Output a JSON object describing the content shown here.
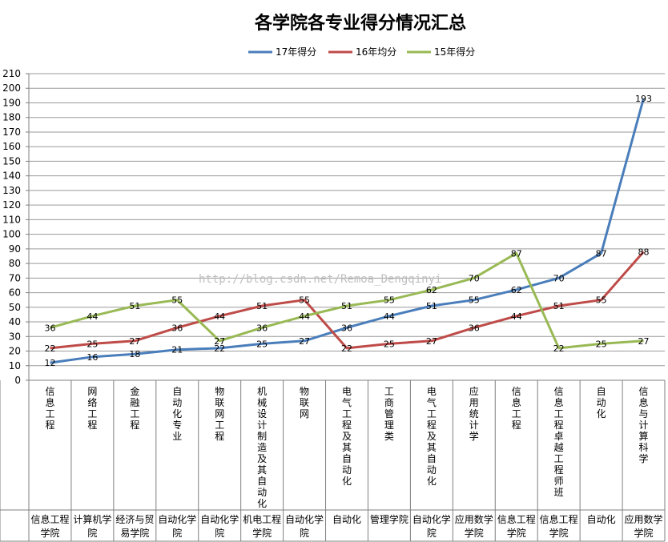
{
  "chart_data": {
    "type": "line",
    "title": "各学院各专业得分情况汇总",
    "watermark": "http://blog.csdn.net/Remoa_Dengqinyi",
    "categories": [
      {
        "major": "信息工程",
        "college": "信息工程学院"
      },
      {
        "major": "网络工程",
        "college": "计算机学院"
      },
      {
        "major": "金融工程",
        "college": "经济与贸易学院"
      },
      {
        "major": "自动化专业",
        "college": "自动化学院"
      },
      {
        "major": "物联网工程",
        "college": "自动化学院"
      },
      {
        "major": "机械设计制造及其自动化",
        "college": "机电工程学院"
      },
      {
        "major": "物联网",
        "college": "自动化学院"
      },
      {
        "major": "电气工程及其自动化",
        "college": "自动化"
      },
      {
        "major": "工商管理类",
        "college": "管理学院"
      },
      {
        "major": "电气工程及其自动化",
        "college": "自动化学院"
      },
      {
        "major": "应用统计学",
        "college": "应用数学学院"
      },
      {
        "major": "信息工程",
        "college": "信息工程学院"
      },
      {
        "major": "信息工程卓越工程师班",
        "college": "信息工程学院"
      },
      {
        "major": "自动化",
        "college": "自动化"
      },
      {
        "major": "信息与计算科学",
        "college": "应用数学学院"
      }
    ],
    "ylim": [
      0,
      210
    ],
    "yticks": [
      0,
      10,
      20,
      30,
      40,
      50,
      60,
      70,
      80,
      90,
      100,
      110,
      120,
      130,
      140,
      150,
      160,
      170,
      180,
      190,
      200,
      210
    ],
    "legend_position": "top",
    "series": [
      {
        "name": "17年得分",
        "color": "#4a7ebb",
        "values": [
          12,
          16,
          18,
          21,
          22,
          25,
          27,
          36,
          44,
          51,
          55,
          62,
          70,
          87,
          193
        ]
      },
      {
        "name": "16年均分",
        "color": "#be4b48",
        "values": [
          22,
          25,
          27,
          36,
          44,
          51,
          55,
          22,
          25,
          27,
          36,
          44,
          51,
          55,
          88
        ]
      },
      {
        "name": "15年得分",
        "color": "#98b954",
        "values": [
          36,
          44,
          51,
          55,
          27,
          36,
          44,
          51,
          55,
          62,
          70,
          87,
          22,
          25,
          27
        ]
      }
    ]
  }
}
